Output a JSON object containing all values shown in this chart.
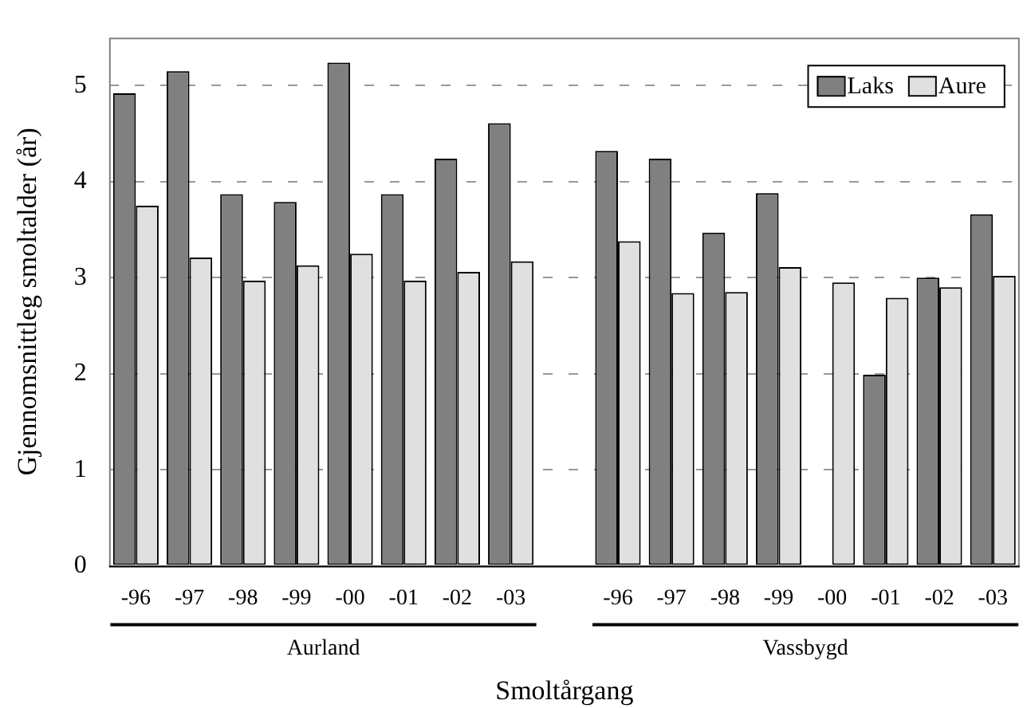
{
  "chart_data": {
    "type": "bar",
    "xlabel": "Smoltårgang",
    "ylabel": "Gjennomsnittleg smoltalder (år)",
    "categories": [
      "-96",
      "-97",
      "-98",
      "-99",
      "-00",
      "-01",
      "-02",
      "-03",
      null,
      "-96",
      "-97",
      "-98",
      "-99",
      "-00",
      "-01",
      "-02",
      "-03"
    ],
    "series": [
      {
        "name": "Laks",
        "color": "#808080",
        "values": [
          4.92,
          5.15,
          3.87,
          3.79,
          5.24,
          3.87,
          4.24,
          4.61,
          null,
          4.32,
          4.24,
          3.47,
          3.88,
          null,
          1.99,
          3.0,
          3.66
        ]
      },
      {
        "name": "Aure",
        "color": "#e0e0e0",
        "values": [
          3.75,
          3.21,
          2.97,
          3.13,
          3.25,
          2.97,
          3.06,
          3.17,
          null,
          3.38,
          2.84,
          2.85,
          3.11,
          2.95,
          2.79,
          2.9,
          3.02
        ]
      }
    ],
    "annotations": [
      "Aurland",
      "Vassbygd"
    ],
    "ylim": [
      0,
      5.5
    ],
    "yticks": [
      0,
      1,
      2,
      3,
      4,
      5
    ],
    "grid": "y",
    "legend": "top right"
  }
}
